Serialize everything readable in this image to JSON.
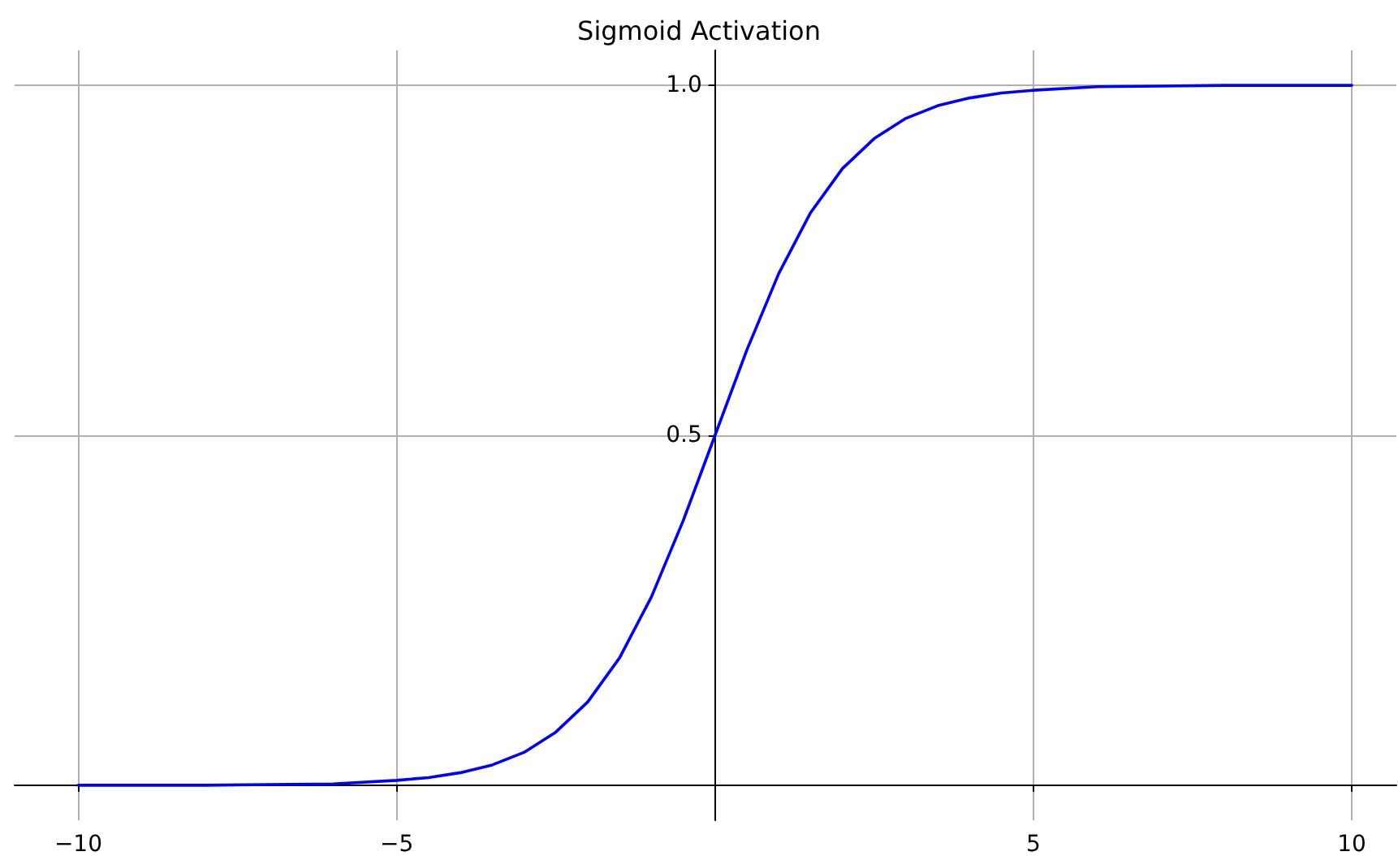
{
  "chart_data": {
    "type": "line",
    "title": "Sigmoid Activation",
    "x": [
      -10,
      -9,
      -8,
      -7,
      -6,
      -5,
      -4.5,
      -4,
      -3.5,
      -3,
      -2.5,
      -2,
      -1.5,
      -1,
      -0.5,
      0,
      0.5,
      1,
      1.5,
      2,
      2.5,
      3,
      3.5,
      4,
      4.5,
      5,
      6,
      7,
      8,
      9,
      10
    ],
    "series": [
      {
        "color": "#0000ff",
        "values": [
          0.0,
          0.0,
          0.0,
          0.001,
          0.002,
          0.007,
          0.011,
          0.018,
          0.029,
          0.047,
          0.076,
          0.119,
          0.182,
          0.269,
          0.378,
          0.5,
          0.622,
          0.731,
          0.818,
          0.881,
          0.924,
          0.953,
          0.971,
          0.982,
          0.989,
          0.993,
          0.998,
          0.999,
          1.0,
          1.0,
          1.0
        ]
      }
    ],
    "xlim": [
      -11,
      10.7
    ],
    "ylim": [
      -0.05,
      1.05
    ],
    "xticks": [
      -10,
      -5,
      {
        "value": 0,
        "label": null
      },
      5,
      10
    ],
    "yticks": [
      {
        "value": 0,
        "label": null
      },
      {
        "value": 0.5,
        "label": "0.5"
      },
      {
        "value": 1,
        "label": "1.0"
      }
    ],
    "grid": true,
    "marker": "none",
    "line_style": "solid"
  }
}
